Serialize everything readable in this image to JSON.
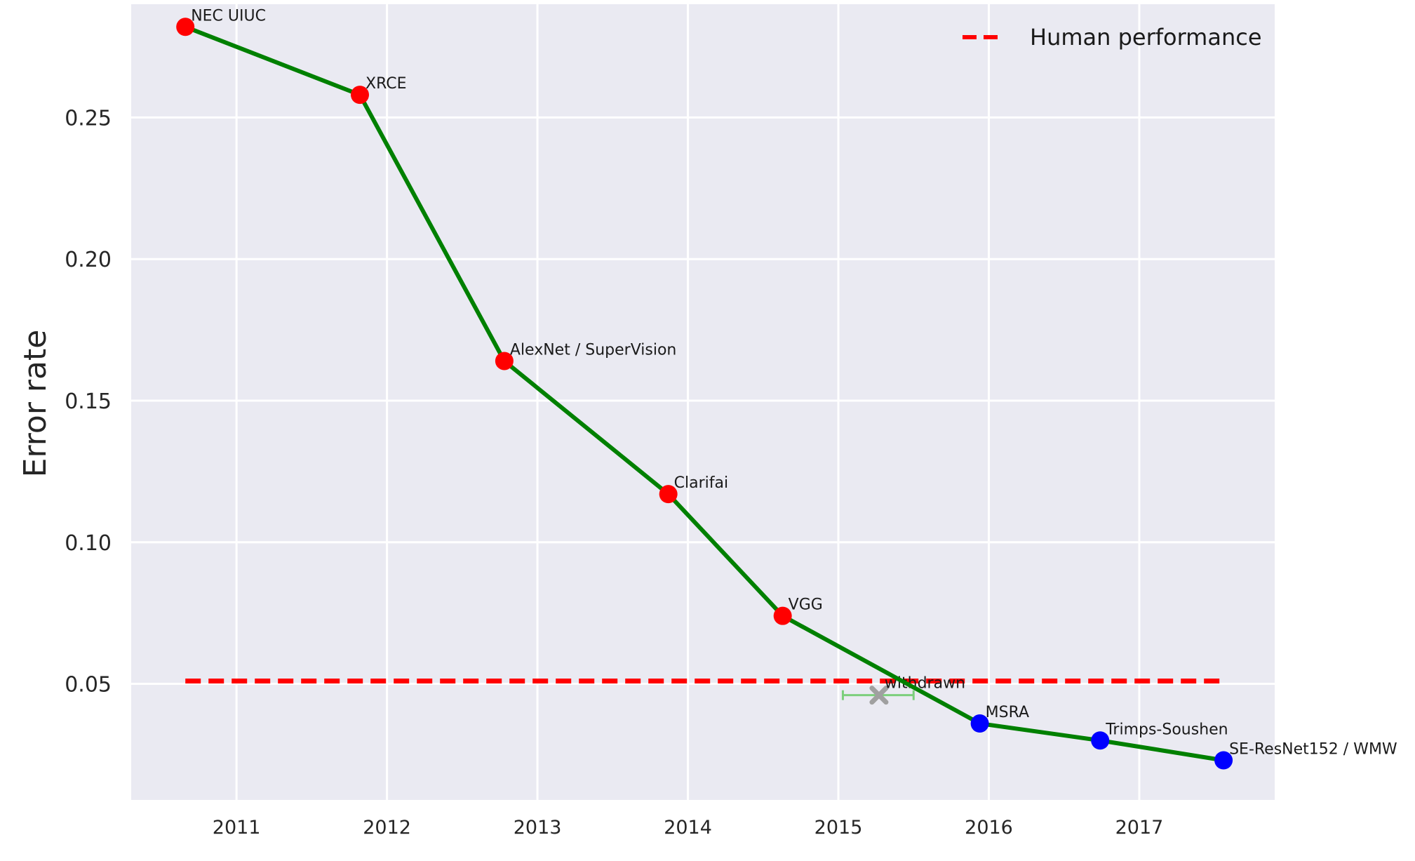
{
  "chart_data": {
    "type": "line",
    "title": "",
    "xlabel": "",
    "ylabel": "Error rate",
    "xlim": [
      2010.3,
      2017.9
    ],
    "ylim": [
      0.009,
      0.29
    ],
    "xticks": [
      2011,
      2012,
      2013,
      2014,
      2015,
      2016,
      2017
    ],
    "yticks": [
      0.05,
      0.1,
      0.15,
      0.2,
      0.25
    ],
    "ytick_labels": [
      "0.05",
      "0.10",
      "0.15",
      "0.20",
      "0.25"
    ],
    "grid": true,
    "legend_position": "top-right",
    "series": [
      {
        "style": "line",
        "color": "#008000",
        "points": [
          {
            "x": 2010.66,
            "y": 0.282,
            "label": "NEC UIUC",
            "color": "#ff0000"
          },
          {
            "x": 2011.82,
            "y": 0.258,
            "label": "XRCE",
            "color": "#ff0000"
          },
          {
            "x": 2012.78,
            "y": 0.164,
            "label": "AlexNet / SuperVision",
            "color": "#ff0000"
          },
          {
            "x": 2013.87,
            "y": 0.117,
            "label": "Clarifai",
            "color": "#ff0000"
          },
          {
            "x": 2014.63,
            "y": 0.074,
            "label": "VGG",
            "color": "#ff0000"
          },
          {
            "x": 2015.94,
            "y": 0.036,
            "label": "MSRA",
            "color": "#0000ff"
          },
          {
            "x": 2016.74,
            "y": 0.03,
            "label": "Trimps-Soushen",
            "color": "#0000ff"
          },
          {
            "x": 2017.56,
            "y": 0.023,
            "label": "SE-ResNet152 / WMW",
            "color": "#0000ff"
          }
        ]
      },
      {
        "name": "Human performance",
        "style": "dashed",
        "color": "#ff0000",
        "x": [
          2010.66,
          2017.56
        ],
        "y": [
          0.051,
          0.051
        ]
      }
    ],
    "annotations": [
      {
        "label": "withdrawn",
        "x": 2015.27,
        "y": 0.046,
        "xerr": [
          2015.03,
          2015.5
        ],
        "marker": "x",
        "marker_color": "#a0a0a0",
        "errorbar_color": "#7ccf7c"
      }
    ]
  }
}
